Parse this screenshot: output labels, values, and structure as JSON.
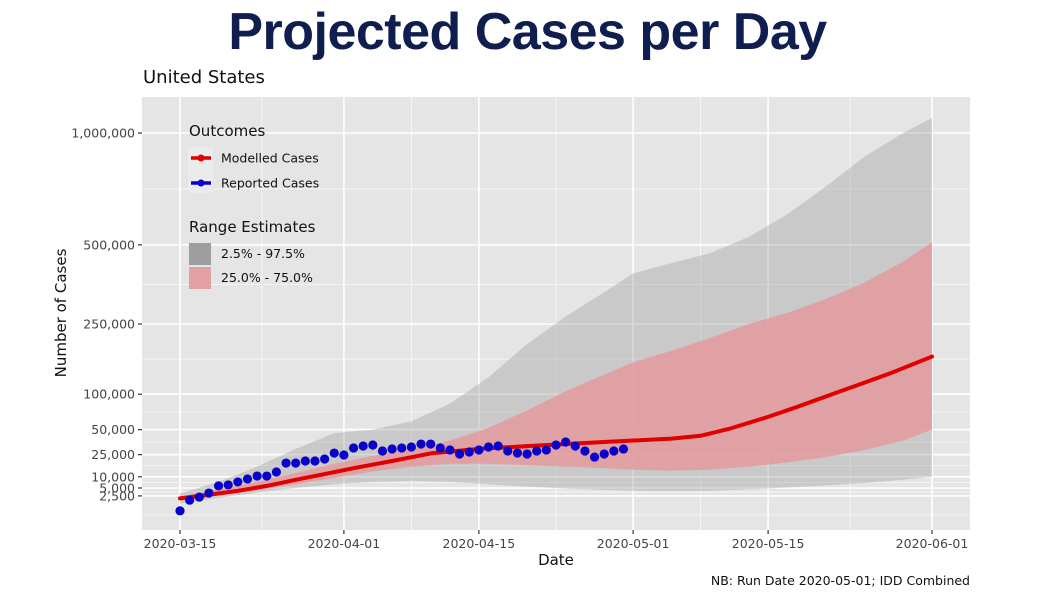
{
  "header": {
    "title": "Projected Cases per Day",
    "subtitle": "United States",
    "caption": "NB: Run Date 2020-05-01; IDD Combined"
  },
  "colors": {
    "title": "#0f1e4f",
    "modelled": "#e00000",
    "reported": "#0a00cc",
    "band_outer": "#a0a0a0",
    "band_inner": "#e39a9c",
    "panel": "#e5e5e5",
    "grid": "#ffffff"
  },
  "chart_data": {
    "type": "line",
    "title": "Projected Cases per Day",
    "subtitle": "United States",
    "xlabel": "Date",
    "ylabel": "Number of Cases",
    "y_scale": "sqrt",
    "ylim": [
      0,
      1150000
    ],
    "xlim": [
      "2020-03-11",
      "2020-06-04"
    ],
    "x_ticks": [
      "2020-03-15",
      "2020-04-01",
      "2020-04-15",
      "2020-05-01",
      "2020-05-15",
      "2020-06-01"
    ],
    "y_ticks": [
      {
        "value": 2500,
        "label": "2,500"
      },
      {
        "value": 5000,
        "label": "5,000"
      },
      {
        "value": 10000,
        "label": "10,000"
      },
      {
        "value": 25000,
        "label": "25,000"
      },
      {
        "value": 50000,
        "label": "50,000"
      },
      {
        "value": 100000,
        "label": "100,000"
      },
      {
        "value": 250000,
        "label": "250,000"
      },
      {
        "value": 500000,
        "label": "500,000"
      },
      {
        "value": 1000000,
        "label": "1,000,000"
      }
    ],
    "grid": true,
    "legend": {
      "position": "top-left",
      "outcomes_title": "Outcomes",
      "outcomes": [
        {
          "label": "Modelled Cases",
          "color": "#e00000"
        },
        {
          "label": "Reported Cases",
          "color": "#0a00cc"
        }
      ],
      "ranges_title": "Range Estimates",
      "ranges": [
        {
          "label": "2.5% - 97.5%",
          "color": "#a0a0a0"
        },
        {
          "label": "25.0% - 75.0%",
          "color": "#e39a9c"
        }
      ]
    },
    "series": [
      {
        "name": "Modelled Cases",
        "kind": "line",
        "points": [
          [
            "2020-03-15",
            1900
          ],
          [
            "2020-03-18",
            2800
          ],
          [
            "2020-03-21",
            4000
          ],
          [
            "2020-03-24",
            5800
          ],
          [
            "2020-03-27",
            8500
          ],
          [
            "2020-03-30",
            11500
          ],
          [
            "2020-04-02",
            15000
          ],
          [
            "2020-04-06",
            20000
          ],
          [
            "2020-04-10",
            26000
          ],
          [
            "2020-04-15",
            30000
          ],
          [
            "2020-04-20",
            32500
          ],
          [
            "2020-04-25",
            35000
          ],
          [
            "2020-05-01",
            38000
          ],
          [
            "2020-05-05",
            40000
          ],
          [
            "2020-05-08",
            43000
          ],
          [
            "2020-05-11",
            51000
          ],
          [
            "2020-05-15",
            66000
          ],
          [
            "2020-05-18",
            80000
          ],
          [
            "2020-05-22",
            102000
          ],
          [
            "2020-05-25",
            120000
          ],
          [
            "2020-05-28",
            140000
          ],
          [
            "2020-06-01",
            172000
          ]
        ]
      },
      {
        "name": "Reported Cases",
        "kind": "points",
        "points": [
          [
            "2020-03-15",
            120
          ],
          [
            "2020-03-16",
            1500
          ],
          [
            "2020-03-17",
            2200
          ],
          [
            "2020-03-18",
            3300
          ],
          [
            "2020-03-19",
            5800
          ],
          [
            "2020-03-20",
            6200
          ],
          [
            "2020-03-21",
            7500
          ],
          [
            "2020-03-22",
            8900
          ],
          [
            "2020-03-23",
            10400
          ],
          [
            "2020-03-24",
            10400
          ],
          [
            "2020-03-25",
            12700
          ],
          [
            "2020-03-26",
            18500
          ],
          [
            "2020-03-27",
            18500
          ],
          [
            "2020-03-28",
            20000
          ],
          [
            "2020-03-29",
            20000
          ],
          [
            "2020-03-30",
            21500
          ],
          [
            "2020-03-31",
            26300
          ],
          [
            "2020-04-01",
            24700
          ],
          [
            "2020-04-02",
            30800
          ],
          [
            "2020-04-03",
            32600
          ],
          [
            "2020-04-04",
            33600
          ],
          [
            "2020-04-05",
            28100
          ],
          [
            "2020-04-06",
            29900
          ],
          [
            "2020-04-07",
            30800
          ],
          [
            "2020-04-08",
            31700
          ],
          [
            "2020-04-09",
            34500
          ],
          [
            "2020-04-10",
            34500
          ],
          [
            "2020-04-11",
            30800
          ],
          [
            "2020-04-12",
            29000
          ],
          [
            "2020-04-13",
            25500
          ],
          [
            "2020-04-14",
            27200
          ],
          [
            "2020-04-15",
            29000
          ],
          [
            "2020-04-16",
            31700
          ],
          [
            "2020-04-17",
            32600
          ],
          [
            "2020-04-18",
            28100
          ],
          [
            "2020-04-19",
            26300
          ],
          [
            "2020-04-20",
            25500
          ],
          [
            "2020-04-21",
            28100
          ],
          [
            "2020-04-22",
            29000
          ],
          [
            "2020-04-23",
            33600
          ],
          [
            "2020-04-24",
            36500
          ],
          [
            "2020-04-25",
            32600
          ],
          [
            "2020-04-26",
            28100
          ],
          [
            "2020-04-27",
            23000
          ],
          [
            "2020-04-28",
            25500
          ],
          [
            "2020-04-29",
            28100
          ],
          [
            "2020-04-30",
            29900
          ]
        ]
      },
      {
        "name": "2.5% - 97.5%",
        "kind": "band",
        "points": [
          [
            "2020-03-15",
            900,
            3200
          ],
          [
            "2020-03-19",
            2000,
            7500
          ],
          [
            "2020-03-23",
            3500,
            16000
          ],
          [
            "2020-03-27",
            5000,
            30000
          ],
          [
            "2020-03-31",
            6500,
            46000
          ],
          [
            "2020-04-04",
            7500,
            50000
          ],
          [
            "2020-04-08",
            8000,
            60000
          ],
          [
            "2020-04-12",
            7500,
            85000
          ],
          [
            "2020-04-16",
            6500,
            130000
          ],
          [
            "2020-04-20",
            5500,
            200000
          ],
          [
            "2020-04-24",
            4800,
            270000
          ],
          [
            "2020-04-28",
            4300,
            340000
          ],
          [
            "2020-05-01",
            4000,
            400000
          ],
          [
            "2020-05-05",
            3900,
            435000
          ],
          [
            "2020-05-09",
            4000,
            470000
          ],
          [
            "2020-05-13",
            4500,
            530000
          ],
          [
            "2020-05-17",
            5200,
            620000
          ],
          [
            "2020-05-21",
            6000,
            740000
          ],
          [
            "2020-05-25",
            7000,
            880000
          ],
          [
            "2020-05-29",
            8500,
            1000000
          ],
          [
            "2020-06-01",
            10000,
            1080000
          ]
        ]
      },
      {
        "name": "25.0% - 75.0%",
        "kind": "band",
        "points": [
          [
            "2020-03-15",
            1500,
            2300
          ],
          [
            "2020-03-19",
            2700,
            4500
          ],
          [
            "2020-03-23",
            4200,
            7500
          ],
          [
            "2020-03-27",
            6500,
            12000
          ],
          [
            "2020-03-31",
            9500,
            18000
          ],
          [
            "2020-04-04",
            13000,
            24000
          ],
          [
            "2020-04-08",
            16000,
            30000
          ],
          [
            "2020-04-12",
            18000,
            38000
          ],
          [
            "2020-04-16",
            18000,
            52000
          ],
          [
            "2020-04-20",
            17000,
            75000
          ],
          [
            "2020-04-24",
            16000,
            105000
          ],
          [
            "2020-04-28",
            15000,
            135000
          ],
          [
            "2020-05-01",
            14000,
            160000
          ],
          [
            "2020-05-05",
            13500,
            185000
          ],
          [
            "2020-05-09",
            14000,
            215000
          ],
          [
            "2020-05-13",
            16000,
            250000
          ],
          [
            "2020-05-17",
            19000,
            280000
          ],
          [
            "2020-05-21",
            23000,
            320000
          ],
          [
            "2020-05-25",
            29000,
            370000
          ],
          [
            "2020-05-29",
            38000,
            440000
          ],
          [
            "2020-06-01",
            50000,
            510000
          ]
        ]
      }
    ]
  }
}
